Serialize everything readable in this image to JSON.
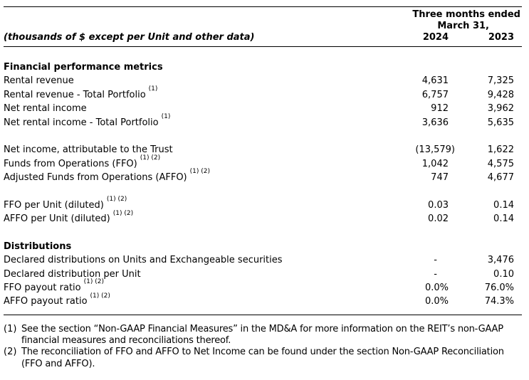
{
  "table": {
    "header": {
      "period_line1": "Three months ended",
      "period_line2": "March 31,",
      "col_2024": "2024",
      "col_2023": "2023",
      "row_label_note": "(thousands of $ except per Unit and other data)"
    },
    "sections": [
      {
        "title": "Financial performance metrics",
        "rows": [
          {
            "label": "Rental revenue",
            "sup": "",
            "v2024": "4,631",
            "v2023": "7,325",
            "gap_before": false
          },
          {
            "label": "Rental revenue - Total Portfolio",
            "sup": "(1)",
            "v2024": "6,757",
            "v2023": "9,428",
            "gap_before": false
          },
          {
            "label": "Net rental income",
            "sup": "",
            "v2024": "912",
            "v2023": "3,962",
            "gap_before": false
          },
          {
            "label": "Net rental income - Total Portfolio",
            "sup": "(1)",
            "v2024": "3,636",
            "v2023": "5,635",
            "gap_before": false
          },
          {
            "label": "Net income, attributable to the Trust",
            "sup": "",
            "v2024": "(13,579)",
            "v2023": "1,622",
            "gap_before": true
          },
          {
            "label": "Funds from Operations (FFO)",
            "sup": "(1) (2)",
            "v2024": "1,042",
            "v2023": "4,575",
            "gap_before": false
          },
          {
            "label": "Adjusted Funds from Operations (AFFO)",
            "sup": "(1) (2)",
            "v2024": "747",
            "v2023": "4,677",
            "gap_before": false
          },
          {
            "label": "FFO per Unit (diluted)",
            "sup": "(1) (2)",
            "v2024": "0.03",
            "v2023": "0.14",
            "gap_before": true
          },
          {
            "label": "AFFO per Unit (diluted)",
            "sup": "(1) (2)",
            "v2024": "0.02",
            "v2023": "0.14",
            "gap_before": false
          }
        ]
      },
      {
        "title": "Distributions",
        "rows": [
          {
            "label": "Declared distributions on Units and Exchangeable securities",
            "sup": "",
            "v2024": "-",
            "v2023": "3,476",
            "gap_before": false
          },
          {
            "label": "Declared distribution per Unit",
            "sup": "",
            "v2024": "-",
            "v2023": "0.10",
            "gap_before": false
          },
          {
            "label": "FFO payout ratio",
            "sup": "(1) (2)",
            "v2024": "0.0%",
            "v2023": "76.0%",
            "gap_before": false
          },
          {
            "label": "AFFO payout ratio",
            "sup": "(1) (2)",
            "v2024": "0.0%",
            "v2023": "74.3%",
            "gap_before": false
          }
        ]
      }
    ]
  },
  "footnotes": [
    {
      "marker": "(1)",
      "text": "See the section “Non-GAAP Financial Measures” in the MD&A for more information on the REIT’s non-GAAP financial measures and reconciliations thereof."
    },
    {
      "marker": "(2)",
      "text": "The reconciliation of FFO and AFFO to Net Income can be found under the section Non-GAAP Reconciliation (FFO and AFFO)."
    }
  ]
}
